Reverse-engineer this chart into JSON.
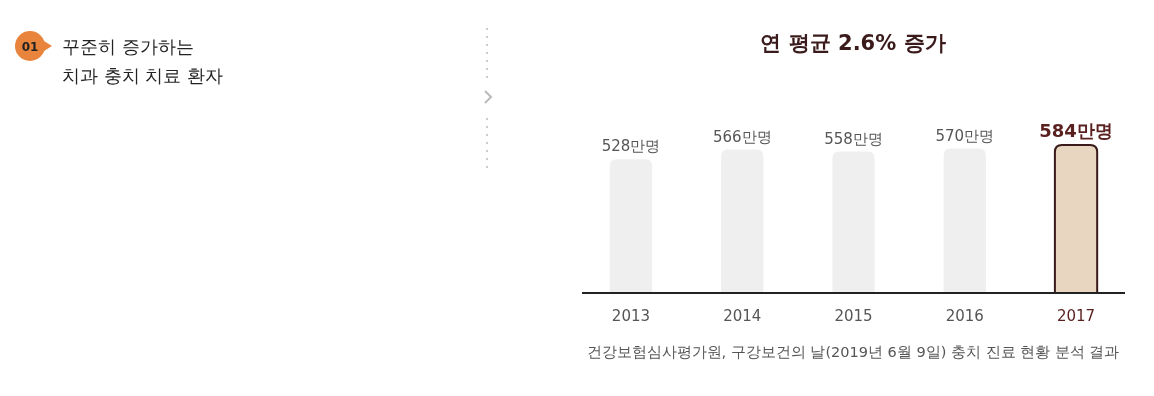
{
  "chart_data": {
    "type": "bar",
    "title": "연 평균 2.6% 증가",
    "categories": [
      "2013",
      "2014",
      "2015",
      "2016",
      "2017"
    ],
    "values": [
      528,
      566,
      558,
      570,
      584
    ],
    "colors": [
      "#efefef",
      "#efefef",
      "#efefef",
      "#efefef",
      "#e8d6c1"
    ],
    "value_labels": [
      "528만명",
      "566만명",
      "558만명",
      "570만명",
      "584만명"
    ],
    "annotations": [
      "01",
      "꾸준히 증가하는\n치과 충치 치료 환자",
      "건강보험심사평가원, 구강보건의 날(2019년 6월 9일) 충치 진료 현황 분석 결과"
    ]
  }
}
